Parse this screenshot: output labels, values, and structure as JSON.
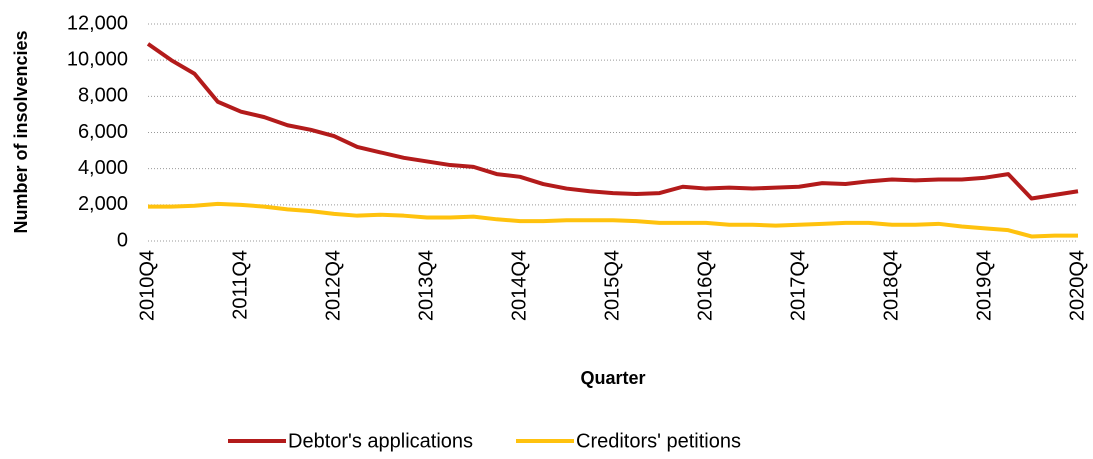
{
  "chart_data": {
    "type": "line",
    "y_label": "Number of insolvencies",
    "x_label": "Quarter",
    "categories": [
      "2010Q4",
      null,
      null,
      null,
      "2011Q4",
      null,
      null,
      null,
      "2012Q4",
      null,
      null,
      null,
      "2013Q4",
      null,
      null,
      null,
      "2014Q4",
      null,
      null,
      null,
      "2015Q4",
      null,
      null,
      null,
      "2016Q4",
      null,
      null,
      null,
      "2017Q4",
      null,
      null,
      null,
      "2018Q4",
      null,
      null,
      null,
      "2019Q4",
      null,
      null,
      null,
      "2020Q4"
    ],
    "series": [
      {
        "name": "Debtor's applications",
        "color": "#b31b1b",
        "values": [
          10900,
          10000,
          9250,
          7700,
          7150,
          6850,
          6400,
          6150,
          5800,
          5200,
          4900,
          4600,
          4400,
          4200,
          4100,
          3700,
          3550,
          3150,
          2900,
          2750,
          2650,
          2600,
          2650,
          3000,
          2900,
          2950,
          2900,
          2950,
          3000,
          3200,
          3150,
          3300,
          3400,
          3350,
          3400,
          3400,
          3500,
          3700,
          2350,
          2550,
          2750
        ]
      },
      {
        "name": "Creditors' petitions",
        "color": "#ffc20e",
        "values": [
          1900,
          1900,
          1950,
          2050,
          2000,
          1900,
          1750,
          1650,
          1500,
          1400,
          1450,
          1400,
          1300,
          1300,
          1350,
          1200,
          1100,
          1100,
          1150,
          1150,
          1150,
          1100,
          1000,
          1000,
          1000,
          900,
          900,
          850,
          900,
          950,
          1000,
          1000,
          900,
          900,
          950,
          800,
          700,
          600,
          250,
          300,
          300
        ]
      }
    ],
    "ylim": [
      0,
      12000
    ],
    "yticks": [
      0,
      {
        "value": 2000,
        "label": "2,000"
      },
      {
        "value": 4000,
        "label": "4,000"
      },
      {
        "value": 6000,
        "label": "6,000"
      },
      {
        "value": 8000,
        "label": "8,000"
      },
      {
        "value": 10000,
        "label": "10,000"
      },
      {
        "value": 12000,
        "label": "12,000"
      }
    ],
    "grid": true,
    "legend": "bottom"
  }
}
